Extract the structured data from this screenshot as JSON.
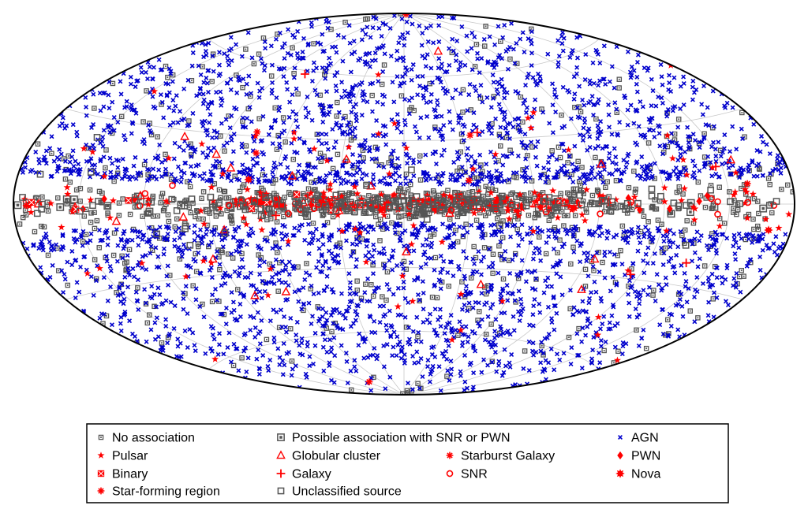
{
  "chart_data": {
    "type": "scatter",
    "projection": "aitoff",
    "coordinate_system": "galactic",
    "grid": true,
    "legend_position": "bottom",
    "title": "",
    "xlabel": "",
    "ylabel": "",
    "xlim": [
      -180,
      180
    ],
    "ylim": [
      -90,
      90
    ],
    "colors": {
      "association": "#ff0000",
      "agn": "#0000cc",
      "unassociated": "#555555",
      "grid": "#c8c8c8"
    },
    "series": [
      {
        "name": "No association",
        "marker": "square-dot",
        "color": "#555555",
        "distribution": {
          "count": 1010,
          "lat_sigma": 35,
          "plane_fraction": 0.45,
          "plane_lat_sigma": 4
        }
      },
      {
        "name": "Possible association with SNR or PWN",
        "marker": "square-big",
        "color": "#555555",
        "distribution": {
          "count": 70,
          "lat_sigma": 6,
          "plane_fraction": 0.9,
          "plane_lat_sigma": 1.8
        }
      },
      {
        "name": "AGN",
        "marker": "x",
        "color": "#0000cc",
        "distribution": {
          "count": 3130,
          "lat_sigma": 0,
          "plane_fraction": 0,
          "plane_lat_sigma": 0,
          "exclude_abs_lat_below": 9
        }
      },
      {
        "name": "Pulsar",
        "marker": "star",
        "color": "#ff0000",
        "distribution": {
          "count": 230,
          "lat_sigma": 30,
          "plane_fraction": 0.6,
          "plane_lat_sigma": 3
        }
      },
      {
        "name": "Globular cluster",
        "marker": "triangle",
        "color": "#ff0000",
        "distribution": {
          "count": 28,
          "lat_sigma": 25,
          "plane_fraction": 0.2,
          "plane_lat_sigma": 5
        }
      },
      {
        "name": "Starburst Galaxy",
        "marker": "asterisk",
        "color": "#ff0000",
        "distribution": {
          "count": 8,
          "lat_sigma": 50,
          "plane_fraction": 0,
          "plane_lat_sigma": 0
        }
      },
      {
        "name": "PWN",
        "marker": "diamond",
        "color": "#ff0000",
        "distribution": {
          "count": 20,
          "lat_sigma": 3,
          "plane_fraction": 1,
          "plane_lat_sigma": 1.5
        }
      },
      {
        "name": "Binary",
        "marker": "square-x",
        "color": "#ff0000",
        "distribution": {
          "count": 12,
          "lat_sigma": 6,
          "plane_fraction": 0.7,
          "plane_lat_sigma": 2
        }
      },
      {
        "name": "Galaxy",
        "marker": "plus",
        "color": "#ff0000",
        "distribution": {
          "count": 6,
          "lat_sigma": 40,
          "plane_fraction": 0,
          "plane_lat_sigma": 0
        }
      },
      {
        "name": "SNR",
        "marker": "circle",
        "color": "#ff0000",
        "distribution": {
          "count": 40,
          "lat_sigma": 4,
          "plane_fraction": 0.9,
          "plane_lat_sigma": 2
        }
      },
      {
        "name": "Nova",
        "marker": "burst",
        "color": "#ff0000",
        "distribution": {
          "count": 4,
          "lat_sigma": 8,
          "plane_fraction": 0.5,
          "plane_lat_sigma": 3
        }
      },
      {
        "name": "Star-forming region",
        "marker": "asterisk",
        "color": "#ff0000",
        "distribution": {
          "count": 5,
          "lat_sigma": 3,
          "plane_fraction": 1,
          "plane_lat_sigma": 1.5
        }
      },
      {
        "name": "Unclassified source",
        "marker": "square",
        "color": "#555555",
        "distribution": {
          "count": 150,
          "lat_sigma": 8,
          "plane_fraction": 0.8,
          "plane_lat_sigma": 2
        }
      }
    ],
    "legend": [
      {
        "label": "No association",
        "marker": "square-dot",
        "color": "#555555"
      },
      {
        "label": "Possible association with SNR or PWN",
        "marker": "square-big",
        "color": "#555555"
      },
      {
        "label": "AGN",
        "marker": "x",
        "color": "#0000cc"
      },
      {
        "label": "Pulsar",
        "marker": "star",
        "color": "#ff0000"
      },
      {
        "label": "Globular cluster",
        "marker": "triangle",
        "color": "#ff0000"
      },
      {
        "label": "Starburst Galaxy",
        "marker": "asterisk",
        "color": "#ff0000"
      },
      {
        "label": "PWN",
        "marker": "diamond",
        "color": "#ff0000"
      },
      {
        "label": "Binary",
        "marker": "square-x",
        "color": "#ff0000"
      },
      {
        "label": "Galaxy",
        "marker": "plus",
        "color": "#ff0000"
      },
      {
        "label": "SNR",
        "marker": "circle",
        "color": "#ff0000"
      },
      {
        "label": "Nova",
        "marker": "burst",
        "color": "#ff0000"
      },
      {
        "label": "Star-forming region",
        "marker": "asterisk",
        "color": "#ff0000"
      },
      {
        "label": "Unclassified source",
        "marker": "square",
        "color": "#555555"
      }
    ]
  }
}
